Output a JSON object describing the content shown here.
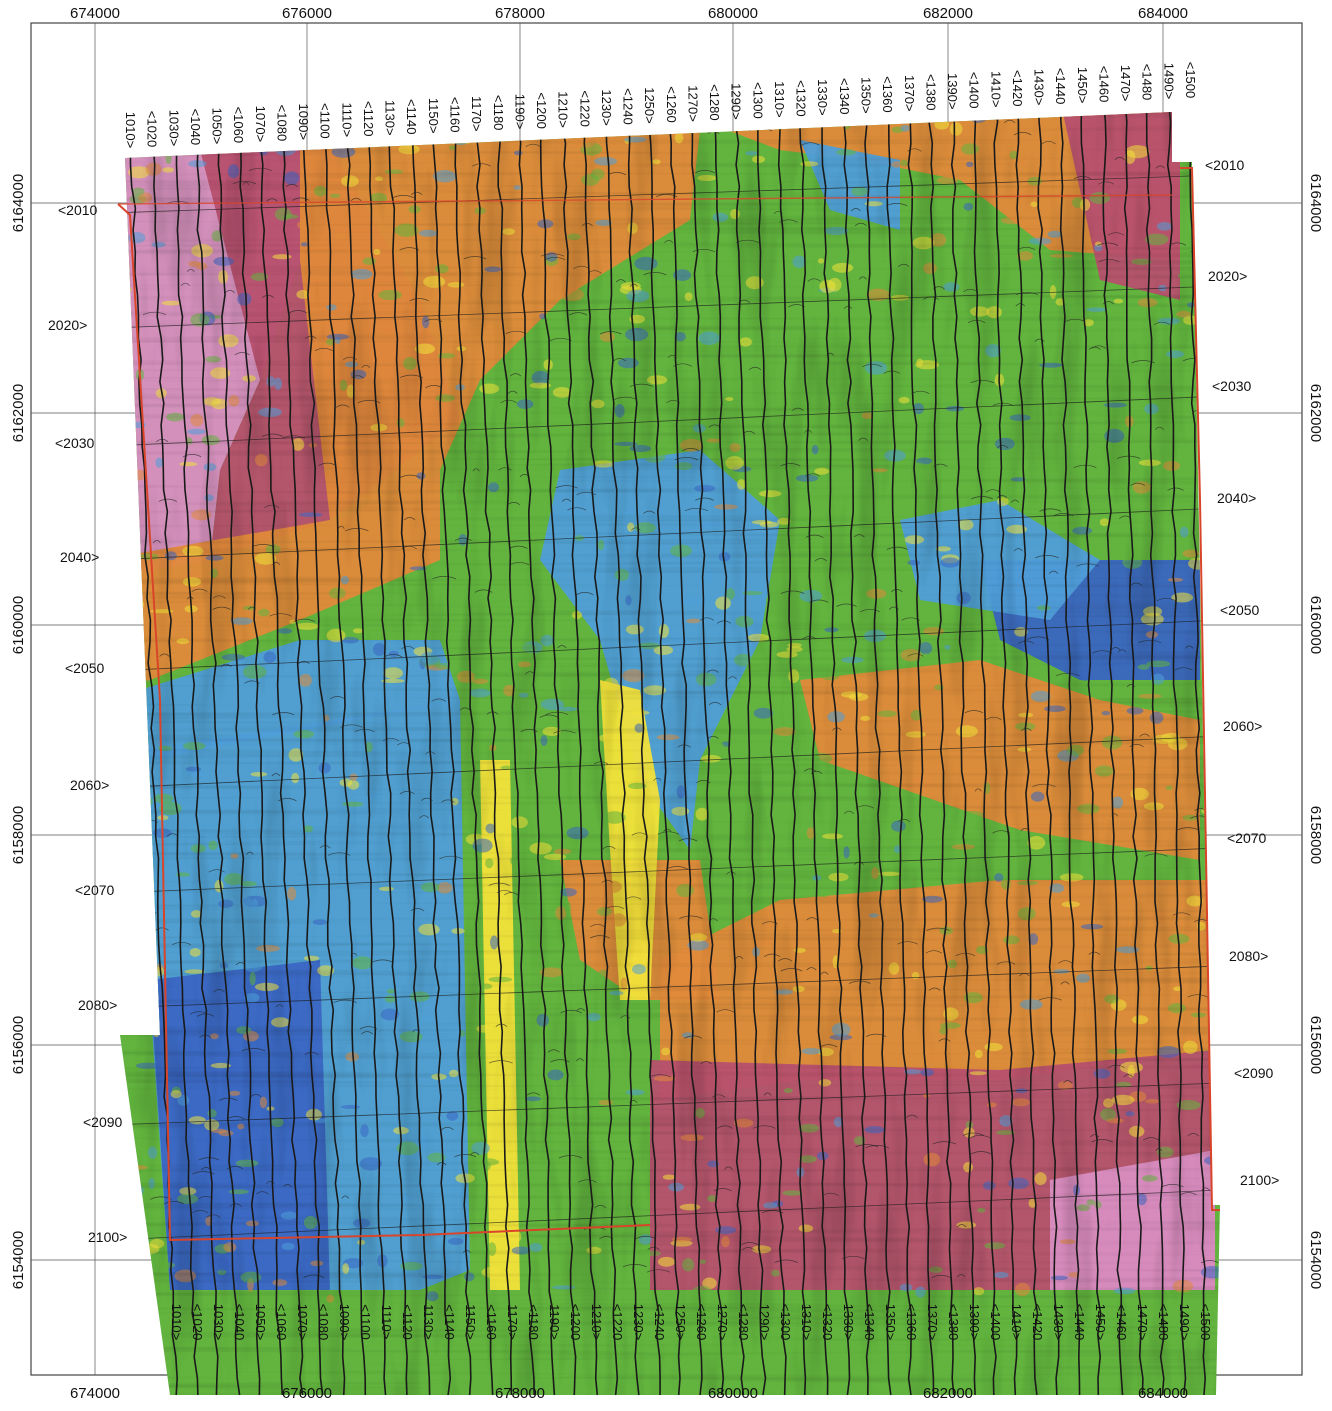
{
  "map": {
    "x_ticks": [
      "674000",
      "676000",
      "678000",
      "680000",
      "682000",
      "684000"
    ],
    "y_ticks": [
      "6164000",
      "6162000",
      "6160000",
      "6158000",
      "6156000",
      "6154000"
    ],
    "top_lines": [
      "1010>",
      "<1020",
      "1030>",
      "<1040",
      "1050>",
      "<1060",
      "1070>",
      "<1080",
      "1090>",
      "<1100",
      "1110>",
      "<1120",
      "1130>",
      "<1140",
      "1150>",
      "<1160",
      "1170>",
      "<1180",
      "1190>",
      "<1200",
      "1210>",
      "<1220",
      "1230>",
      "<1240",
      "1250>",
      "<1260",
      "1270>",
      "<1280",
      "1290>",
      "<1300",
      "1310>",
      "<1320",
      "1330>",
      "<1340",
      "1350>",
      "<1360",
      "1370>",
      "<1380",
      "1390>",
      "<1400",
      "1410>",
      "<1420",
      "1430>",
      "<1440",
      "1450>",
      "<1460",
      "1470>",
      "<1480",
      "1490>",
      "<1500"
    ],
    "bottom_lines": [
      "1010>",
      "<1020",
      "1030>",
      "<1040",
      "1050>",
      "<1060",
      "1070>",
      "<1080",
      "1090>",
      "<1100",
      "1110>",
      "<1120",
      "1130>",
      "<1140",
      "1150>",
      "<1160",
      "1170>",
      "<1180",
      "1190>",
      "<1200",
      "1210>",
      "<1220",
      "1230>",
      "<1240",
      "1250>",
      "<1260",
      "1270>",
      "<1280",
      "1290>",
      "<1300",
      "1310>",
      "<1320",
      "1330>",
      "<1340",
      "1350>",
      "<1360",
      "1370>",
      "<1380",
      "1390>",
      "<1400",
      "1410>",
      "<1420",
      "1430>",
      "<1440",
      "1450>",
      "<1460",
      "1470>",
      "<1480",
      "1490>",
      "<1500"
    ],
    "tie_lines_left": [
      "<2010",
      "2020>",
      "<2030",
      "2040>",
      "<2050",
      "2060>",
      "<2070",
      "2080>",
      "<2090",
      "2100>"
    ],
    "tie_lines_right": [
      "<2010",
      "2020>",
      "<2030",
      "2040>",
      "<2050",
      "2060>",
      "<2070",
      "2080>",
      "<2090",
      "2100>"
    ],
    "colors": {
      "magenta": "#d98ec2",
      "pink_red": "#b7506e",
      "orange": "#e08a3a",
      "yellow": "#f2e13a",
      "green": "#62b43e",
      "cyan_blue": "#4f9ed8",
      "blue": "#3a66c2",
      "survey_boundary": "#d8452a"
    }
  }
}
